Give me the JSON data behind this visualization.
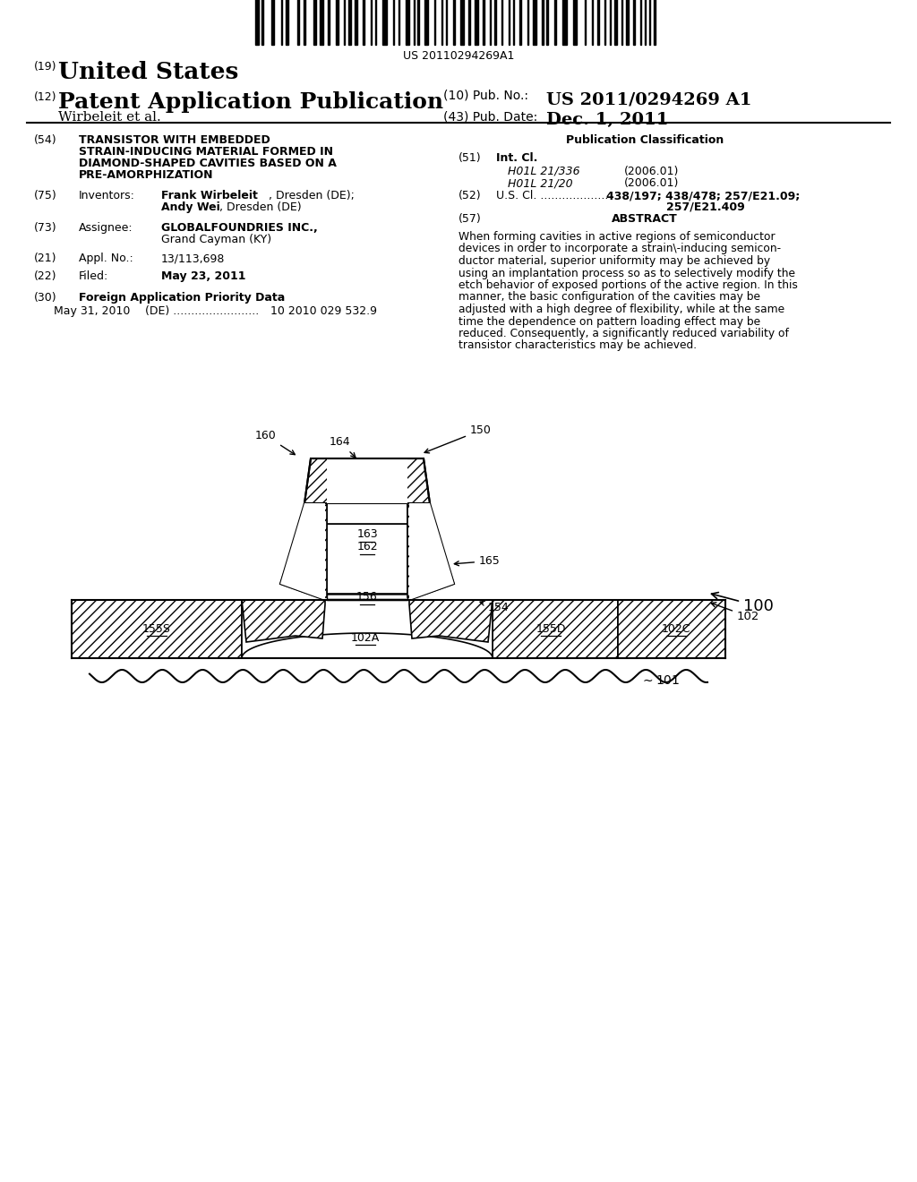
{
  "bg_color": "#ffffff",
  "barcode_text": "US 20110294269A1",
  "header_19": "(19)",
  "header_19_text": "United States",
  "header_12": "(12)",
  "header_12_text": "Patent Application Publication",
  "header_author": "Wirbeleit et al.",
  "header_10": "(10) Pub. No.:",
  "header_pub_no": "US 2011/0294269 A1",
  "header_43": "(43) Pub. Date:",
  "header_date": "Dec. 1, 2011",
  "left_54": "(54)",
  "left_54_lines": [
    "TRANSISTOR WITH EMBEDDED",
    "STRAIN-INDUCING MATERIAL FORMED IN",
    "DIAMOND-SHAPED CAVITIES BASED ON A",
    "PRE-AMORPHIZATION"
  ],
  "left_75": "(75)",
  "left_75_label": "Inventors:",
  "left_75_name1": "Frank Wirbeleit",
  "left_75_city1": ", Dresden (DE);",
  "left_75_name2": "Andy Wei",
  "left_75_city2": ", Dresden (DE)",
  "left_73": "(73)",
  "left_73_label": "Assignee:",
  "left_73_name": "GLOBALFOUNDRIES INC.,",
  "left_73_city": "Grand Cayman (KY)",
  "left_21": "(21)",
  "left_21_label": "Appl. No.:",
  "left_21_val": "13/113,698",
  "left_22": "(22)",
  "left_22_label": "Filed:",
  "left_22_val": "May 23, 2011",
  "left_30": "(30)",
  "left_30_label": "Foreign Application Priority Data",
  "left_30_date": "May 31, 2010",
  "left_30_country": "(DE) ........................",
  "left_30_num": "10 2010 029 532.9",
  "right_class_title": "Publication Classification",
  "right_51": "(51)",
  "right_51_label": "Int. Cl.",
  "right_51_h1": "H01L 21/336",
  "right_51_h1_date": "(2006.01)",
  "right_51_h2": "H01L 21/20",
  "right_51_h2_date": "(2006.01)",
  "right_52": "(52)",
  "right_52_label": "U.S. Cl. ...................",
  "right_52_val": "438/197; 438/478; 257/E21.09;",
  "right_52_val2": "257/E21.409",
  "right_57": "(57)",
  "right_57_label": "ABSTRACT",
  "abstract_lines": [
    "When forming cavities in active regions of semiconductor",
    "devices in order to incorporate a strain\\-inducing semicon-",
    "ductor material, superior uniformity may be achieved by",
    "using an implantation process so as to selectively modify the",
    "etch behavior of exposed portions of the active region. In this",
    "manner, the basic configuration of the cavities may be",
    "adjusted with a high degree of flexibility, while at the same",
    "time the dependence on pattern loading effect may be",
    "reduced. Consequently, a significantly reduced variability of",
    "transistor characteristics may be achieved."
  ]
}
